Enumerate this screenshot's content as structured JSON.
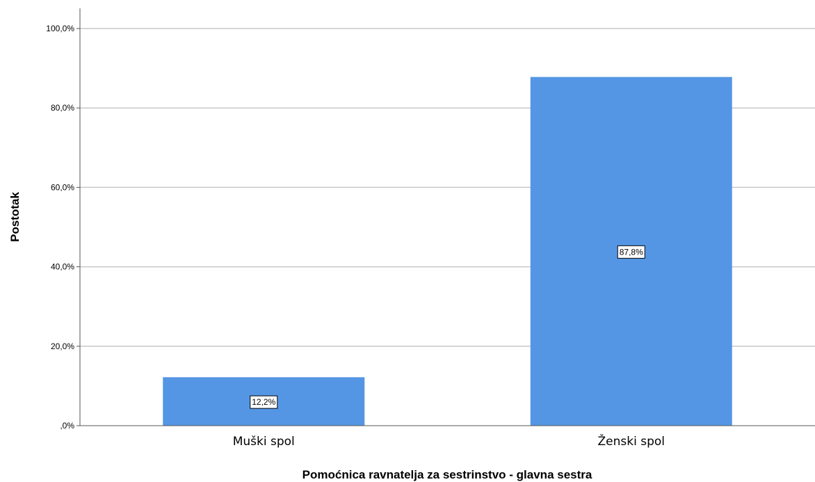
{
  "chart_data": {
    "type": "bar",
    "categories": [
      "Muški spol",
      "Ženski spol"
    ],
    "values": [
      12.2,
      87.8
    ],
    "value_labels": [
      "12,2%",
      "87,8%"
    ],
    "xlabel": "Pomoćnica ravnatelja za sestrinstvo - glavna sestra",
    "ylabel": "Postotak",
    "ylim": [
      0,
      100
    ],
    "y_ticks": [
      0,
      20,
      40,
      60,
      80,
      100
    ],
    "y_tick_labels": [
      ",0%",
      "20,0%",
      "40,0%",
      "60,0%",
      "80,0%",
      "100,0%"
    ],
    "grid": true,
    "bar_color": "#5596e4",
    "gridline_color": "#c8c8c8"
  }
}
